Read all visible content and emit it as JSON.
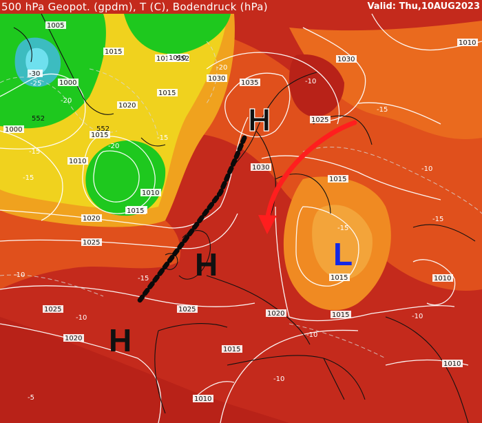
{
  "header": {
    "title": "500 hPa Geopot. (gpdm), T (C), Bodendruck (hPa)",
    "valid": "Valid: Thu,10AUG2023"
  },
  "pressure_labels": [
    "1005",
    "1000",
    "1015",
    "1010",
    "1010",
    "1015",
    "1020",
    "1015",
    "1010",
    "1015",
    "1010",
    "1020",
    "1025",
    "1025",
    "1030",
    "1035",
    "1025",
    "1030",
    "1030",
    "1015",
    "1015",
    "1020",
    "1015",
    "1015",
    "1010",
    "1010",
    "1010",
    "1010",
    "1015",
    "1020",
    "1025",
    "1000",
    "1010"
  ],
  "temperature_labels": [
    "-30",
    "-25",
    "-20",
    "-20",
    "-20",
    "-15",
    "-15",
    "-15",
    "-10",
    "-15",
    "-10",
    "-15",
    "-15",
    "-10",
    "-10",
    "-10",
    "-5",
    "-10",
    "-15",
    "-10"
  ],
  "geopotential_labels": [
    "552",
    "552",
    "552"
  ],
  "systems": [
    {
      "letter": "H",
      "color": "#111111"
    },
    {
      "letter": "H",
      "color": "#111111"
    },
    {
      "letter": "H",
      "color": "#111111"
    },
    {
      "letter": "L",
      "color": "#1428e6"
    }
  ],
  "colors": {
    "red": "#c8281e",
    "orange": "#e8641e",
    "yellow": "#f0d21e",
    "green": "#1ec81e",
    "cyan": "#28c8c8",
    "arrow": "#ff1e1e"
  }
}
